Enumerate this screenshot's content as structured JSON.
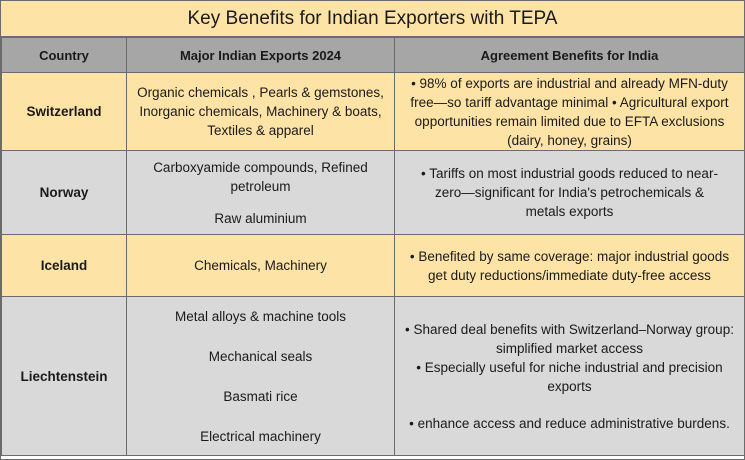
{
  "title": "Key Benefits for Indian Exporters with TEPA",
  "headers": {
    "country": "Country",
    "exports": "Major Indian Exports 2024",
    "benefits": "Agreement Benefits for India"
  },
  "rows": [
    {
      "country": "Switzerland",
      "exports": [
        "Organic chemicals , Pearls & gemstones, Inorganic chemicals,  Machinery & boats, Textiles & apparel"
      ],
      "benefits": [
        "• 98% of exports are industrial and already MFN-duty free—so tariff advantage minimal • Agricultural export opportunities remain limited due to EFTA exclusions (dairy, honey, grains)"
      ]
    },
    {
      "country": "Norway",
      "exports": [
        "Carboxyamide compounds,  Refined petroleum",
        "Raw aluminium"
      ],
      "benefits": [
        "• Tariffs on most industrial goods reduced to near-zero—significant for India's petrochemicals & metals exports"
      ]
    },
    {
      "country": "Iceland",
      "exports": [
        "Chemicals, Machinery"
      ],
      "benefits": [
        "• Benefited by same coverage: major industrial goods get duty reductions/immediate duty-free access"
      ]
    },
    {
      "country": "Liechtenstein",
      "exports": [
        "Metal alloys & machine tools",
        "Mechanical seals",
        "Basmati rice",
        "Electrical machinery"
      ],
      "benefits": [
        "• Shared deal benefits with Switzerland–Norway group: simplified market access",
        "• Especially useful for niche industrial and precision exports",
        "•  enhance access and reduce administrative burdens."
      ]
    }
  ]
}
